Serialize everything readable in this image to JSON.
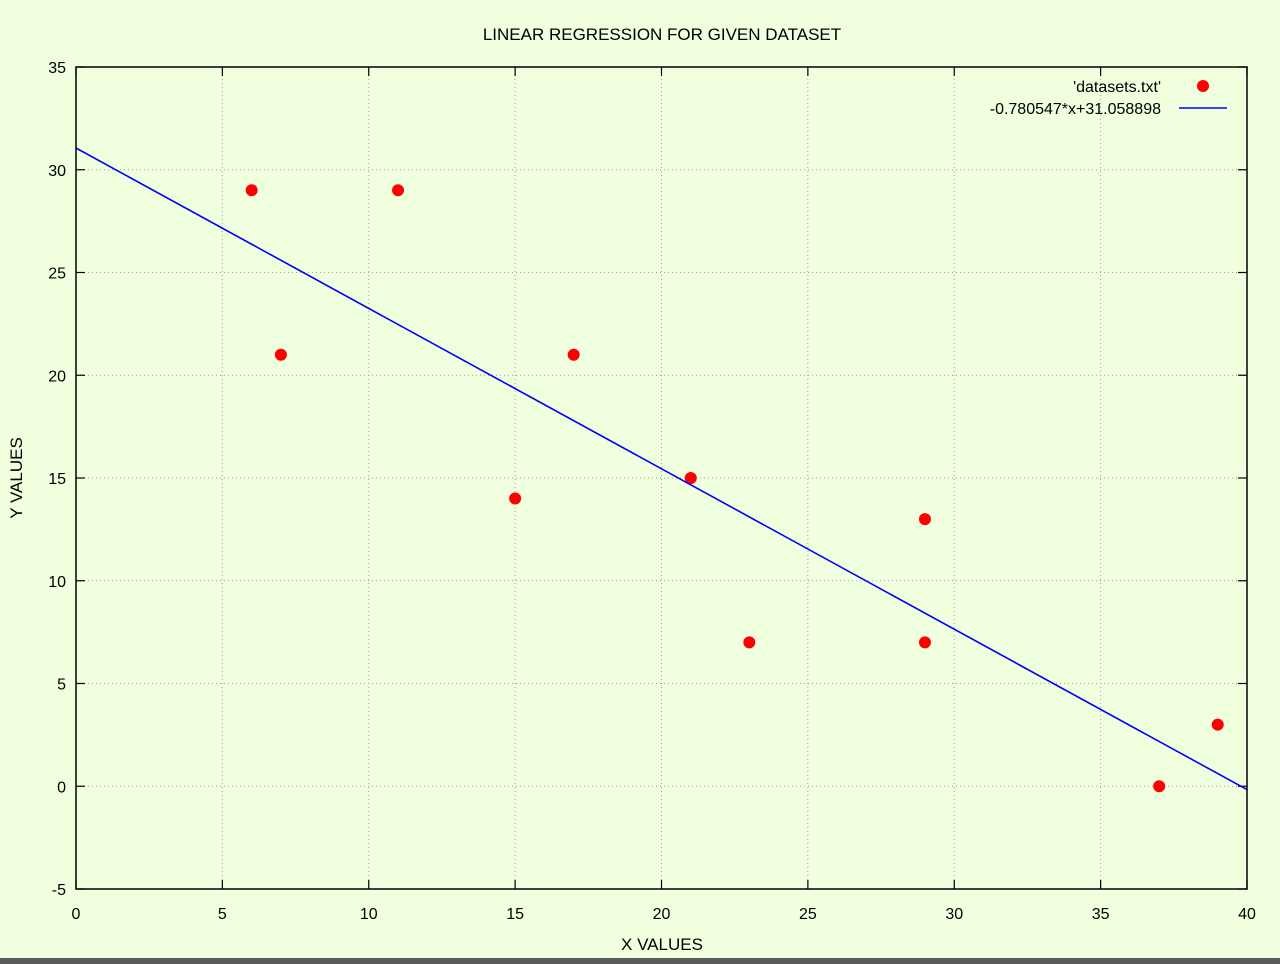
{
  "chart_data": {
    "type": "scatter",
    "title": "LINEAR REGRESSION FOR GIVEN DATASET",
    "xlabel": "X VALUES",
    "ylabel": "Y VALUES",
    "xlim": [
      0,
      40
    ],
    "ylim": [
      -5,
      35
    ],
    "xticks": [
      0,
      5,
      10,
      15,
      20,
      25,
      30,
      35,
      40
    ],
    "yticks": [
      -5,
      0,
      5,
      10,
      15,
      20,
      25,
      30,
      35
    ],
    "grid": true,
    "legend_position": "top-right",
    "background_color": "#f0ffdd",
    "series": [
      {
        "name": "'datasets.txt'",
        "kind": "points",
        "color": "#ff0000",
        "points": [
          {
            "x": 6,
            "y": 29
          },
          {
            "x": 7,
            "y": 21
          },
          {
            "x": 11,
            "y": 29
          },
          {
            "x": 15,
            "y": 14
          },
          {
            "x": 17,
            "y": 21
          },
          {
            "x": 21,
            "y": 15
          },
          {
            "x": 23,
            "y": 7
          },
          {
            "x": 29,
            "y": 13
          },
          {
            "x": 29,
            "y": 7
          },
          {
            "x": 37,
            "y": 0
          },
          {
            "x": 39,
            "y": 3
          }
        ]
      },
      {
        "name": "-0.780547*x+31.058898",
        "kind": "line",
        "color": "#0000ff",
        "slope": -0.780547,
        "intercept": 31.058898
      }
    ]
  }
}
